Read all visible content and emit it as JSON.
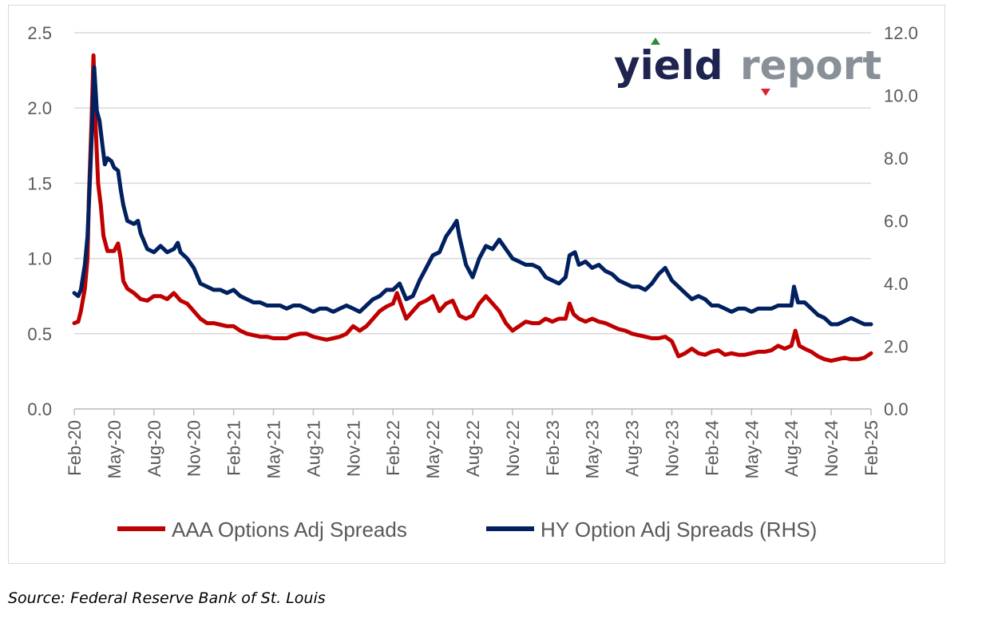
{
  "source": "Source: Federal Reserve Bank of St. Louis",
  "logo": {
    "part1": "yield",
    "part2": "report",
    "dark_color": "#1e2350",
    "grey_color": "#8a9099",
    "up_color": "#2e8b3a",
    "down_color": "#e02030"
  },
  "chart_data": {
    "type": "line",
    "title": "",
    "x_ticks": [
      "Feb-20",
      "May-20",
      "Aug-20",
      "Nov-20",
      "Feb-21",
      "May-21",
      "Aug-21",
      "Nov-21",
      "Feb-22",
      "May-22",
      "Aug-22",
      "Nov-22",
      "Feb-23",
      "May-23",
      "Aug-23",
      "Nov-23",
      "Feb-24",
      "May-24",
      "Aug-24",
      "Nov-24",
      "Feb-25"
    ],
    "y_left": {
      "min": 0,
      "max": 2.5,
      "ticks": [
        "0.0",
        "0.5",
        "1.0",
        "1.5",
        "2.0",
        "2.5"
      ]
    },
    "y_right": {
      "min": 0,
      "max": 12,
      "ticks": [
        "0.0",
        "2.0",
        "4.0",
        "6.0",
        "8.0",
        "10.0",
        "12.0"
      ]
    },
    "grid": "horizontal",
    "legend_position": "bottom",
    "series": [
      {
        "name": "AAA Options Adj Spreads",
        "axis": "left",
        "color": "#c00000",
        "points": [
          [
            0,
            0.57
          ],
          [
            0.3,
            0.58
          ],
          [
            0.5,
            0.65
          ],
          [
            0.8,
            0.8
          ],
          [
            1.0,
            1.0
          ],
          [
            1.1,
            1.4
          ],
          [
            1.3,
            1.9
          ],
          [
            1.45,
            2.35
          ],
          [
            1.6,
            1.9
          ],
          [
            1.8,
            1.5
          ],
          [
            2.0,
            1.35
          ],
          [
            2.2,
            1.15
          ],
          [
            2.5,
            1.05
          ],
          [
            3.0,
            1.05
          ],
          [
            3.3,
            1.1
          ],
          [
            3.5,
            1.0
          ],
          [
            3.7,
            0.85
          ],
          [
            4.0,
            0.8
          ],
          [
            4.5,
            0.77
          ],
          [
            5.0,
            0.73
          ],
          [
            5.5,
            0.72
          ],
          [
            6.0,
            0.75
          ],
          [
            6.5,
            0.75
          ],
          [
            7.0,
            0.73
          ],
          [
            7.5,
            0.77
          ],
          [
            8.0,
            0.72
          ],
          [
            8.5,
            0.7
          ],
          [
            9.0,
            0.65
          ],
          [
            9.5,
            0.6
          ],
          [
            10.0,
            0.57
          ],
          [
            10.5,
            0.57
          ],
          [
            11.0,
            0.56
          ],
          [
            11.5,
            0.55
          ],
          [
            12.0,
            0.55
          ],
          [
            12.5,
            0.52
          ],
          [
            13.0,
            0.5
          ],
          [
            13.5,
            0.49
          ],
          [
            14.0,
            0.48
          ],
          [
            14.5,
            0.48
          ],
          [
            15.0,
            0.47
          ],
          [
            15.5,
            0.47
          ],
          [
            16.0,
            0.47
          ],
          [
            16.5,
            0.49
          ],
          [
            17.0,
            0.5
          ],
          [
            17.5,
            0.5
          ],
          [
            18.0,
            0.48
          ],
          [
            18.5,
            0.47
          ],
          [
            19.0,
            0.46
          ],
          [
            19.5,
            0.47
          ],
          [
            20.0,
            0.48
          ],
          [
            20.5,
            0.5
          ],
          [
            21.0,
            0.55
          ],
          [
            21.5,
            0.52
          ],
          [
            22.0,
            0.55
          ],
          [
            22.5,
            0.6
          ],
          [
            23.0,
            0.65
          ],
          [
            23.5,
            0.68
          ],
          [
            24.0,
            0.7
          ],
          [
            24.3,
            0.77
          ],
          [
            24.7,
            0.67
          ],
          [
            25.0,
            0.6
          ],
          [
            25.5,
            0.65
          ],
          [
            26.0,
            0.7
          ],
          [
            26.5,
            0.72
          ],
          [
            27.0,
            0.75
          ],
          [
            27.5,
            0.65
          ],
          [
            28.0,
            0.7
          ],
          [
            28.5,
            0.72
          ],
          [
            29.0,
            0.62
          ],
          [
            29.5,
            0.6
          ],
          [
            30.0,
            0.62
          ],
          [
            30.5,
            0.7
          ],
          [
            31.0,
            0.75
          ],
          [
            31.5,
            0.7
          ],
          [
            32.0,
            0.65
          ],
          [
            32.5,
            0.57
          ],
          [
            33.0,
            0.52
          ],
          [
            33.5,
            0.55
          ],
          [
            34.0,
            0.58
          ],
          [
            34.5,
            0.57
          ],
          [
            35.0,
            0.57
          ],
          [
            35.5,
            0.6
          ],
          [
            36.0,
            0.58
          ],
          [
            36.5,
            0.6
          ],
          [
            37.0,
            0.6
          ],
          [
            37.3,
            0.7
          ],
          [
            37.6,
            0.63
          ],
          [
            38.0,
            0.6
          ],
          [
            38.5,
            0.58
          ],
          [
            39.0,
            0.6
          ],
          [
            39.5,
            0.58
          ],
          [
            40.0,
            0.57
          ],
          [
            40.5,
            0.55
          ],
          [
            41.0,
            0.53
          ],
          [
            41.5,
            0.52
          ],
          [
            42.0,
            0.5
          ],
          [
            42.5,
            0.49
          ],
          [
            43.0,
            0.48
          ],
          [
            43.5,
            0.47
          ],
          [
            44.0,
            0.47
          ],
          [
            44.5,
            0.48
          ],
          [
            45.0,
            0.45
          ],
          [
            45.5,
            0.35
          ],
          [
            46.0,
            0.37
          ],
          [
            46.5,
            0.4
          ],
          [
            47.0,
            0.37
          ],
          [
            47.5,
            0.36
          ],
          [
            48.0,
            0.38
          ],
          [
            48.5,
            0.39
          ],
          [
            49.0,
            0.36
          ],
          [
            49.5,
            0.37
          ],
          [
            50.0,
            0.36
          ],
          [
            50.5,
            0.36
          ],
          [
            51.0,
            0.37
          ],
          [
            51.5,
            0.38
          ],
          [
            52.0,
            0.38
          ],
          [
            52.5,
            0.39
          ],
          [
            53.0,
            0.42
          ],
          [
            53.5,
            0.4
          ],
          [
            54.0,
            0.42
          ],
          [
            54.3,
            0.52
          ],
          [
            54.6,
            0.42
          ],
          [
            55.0,
            0.4
          ],
          [
            55.5,
            0.38
          ],
          [
            56.0,
            0.35
          ],
          [
            56.5,
            0.33
          ],
          [
            57.0,
            0.32
          ],
          [
            57.5,
            0.33
          ],
          [
            58.0,
            0.34
          ],
          [
            58.5,
            0.33
          ],
          [
            59.0,
            0.33
          ],
          [
            59.5,
            0.34
          ],
          [
            60.0,
            0.37
          ]
        ]
      },
      {
        "name": "HY Option Adj Spreads (RHS)",
        "axis": "right",
        "color": "#002060",
        "points": [
          [
            0,
            3.7
          ],
          [
            0.3,
            3.6
          ],
          [
            0.5,
            3.8
          ],
          [
            0.8,
            4.6
          ],
          [
            1.0,
            5.5
          ],
          [
            1.1,
            6.5
          ],
          [
            1.3,
            8.5
          ],
          [
            1.5,
            10.9
          ],
          [
            1.7,
            9.5
          ],
          [
            1.9,
            9.2
          ],
          [
            2.1,
            8.5
          ],
          [
            2.3,
            7.8
          ],
          [
            2.5,
            8.0
          ],
          [
            2.8,
            7.9
          ],
          [
            3.0,
            7.7
          ],
          [
            3.3,
            7.6
          ],
          [
            3.5,
            7.0
          ],
          [
            3.7,
            6.5
          ],
          [
            4.0,
            6.0
          ],
          [
            4.5,
            5.9
          ],
          [
            4.8,
            6.0
          ],
          [
            5.0,
            5.6
          ],
          [
            5.5,
            5.1
          ],
          [
            6.0,
            5.0
          ],
          [
            6.5,
            5.2
          ],
          [
            7.0,
            5.0
          ],
          [
            7.5,
            5.1
          ],
          [
            7.8,
            5.3
          ],
          [
            8.0,
            5.0
          ],
          [
            8.5,
            4.8
          ],
          [
            9.0,
            4.5
          ],
          [
            9.5,
            4.0
          ],
          [
            10.0,
            3.9
          ],
          [
            10.5,
            3.8
          ],
          [
            11.0,
            3.8
          ],
          [
            11.5,
            3.7
          ],
          [
            12.0,
            3.8
          ],
          [
            12.5,
            3.6
          ],
          [
            13.0,
            3.5
          ],
          [
            13.5,
            3.4
          ],
          [
            14.0,
            3.4
          ],
          [
            14.5,
            3.3
          ],
          [
            15.0,
            3.3
          ],
          [
            15.5,
            3.3
          ],
          [
            16.0,
            3.2
          ],
          [
            16.5,
            3.3
          ],
          [
            17.0,
            3.3
          ],
          [
            17.5,
            3.2
          ],
          [
            18.0,
            3.1
          ],
          [
            18.5,
            3.2
          ],
          [
            19.0,
            3.2
          ],
          [
            19.5,
            3.1
          ],
          [
            20.0,
            3.2
          ],
          [
            20.5,
            3.3
          ],
          [
            21.0,
            3.2
          ],
          [
            21.5,
            3.1
          ],
          [
            22.0,
            3.3
          ],
          [
            22.5,
            3.5
          ],
          [
            23.0,
            3.6
          ],
          [
            23.5,
            3.8
          ],
          [
            24.0,
            3.8
          ],
          [
            24.5,
            4.0
          ],
          [
            25.0,
            3.5
          ],
          [
            25.5,
            3.6
          ],
          [
            26.0,
            4.1
          ],
          [
            26.5,
            4.5
          ],
          [
            27.0,
            4.9
          ],
          [
            27.5,
            5.0
          ],
          [
            28.0,
            5.5
          ],
          [
            28.5,
            5.8
          ],
          [
            28.8,
            6.0
          ],
          [
            29.0,
            5.5
          ],
          [
            29.5,
            4.6
          ],
          [
            30.0,
            4.2
          ],
          [
            30.5,
            4.8
          ],
          [
            31.0,
            5.2
          ],
          [
            31.5,
            5.1
          ],
          [
            32.0,
            5.4
          ],
          [
            32.5,
            5.1
          ],
          [
            33.0,
            4.8
          ],
          [
            33.5,
            4.7
          ],
          [
            34.0,
            4.6
          ],
          [
            34.5,
            4.6
          ],
          [
            35.0,
            4.5
          ],
          [
            35.5,
            4.2
          ],
          [
            36.0,
            4.1
          ],
          [
            36.5,
            4.0
          ],
          [
            37.0,
            4.2
          ],
          [
            37.3,
            4.9
          ],
          [
            37.7,
            5.0
          ],
          [
            38.0,
            4.6
          ],
          [
            38.5,
            4.7
          ],
          [
            39.0,
            4.5
          ],
          [
            39.5,
            4.6
          ],
          [
            40.0,
            4.4
          ],
          [
            40.5,
            4.3
          ],
          [
            41.0,
            4.1
          ],
          [
            41.5,
            4.0
          ],
          [
            42.0,
            3.9
          ],
          [
            42.5,
            3.9
          ],
          [
            43.0,
            3.8
          ],
          [
            43.5,
            4.0
          ],
          [
            44.0,
            4.3
          ],
          [
            44.5,
            4.5
          ],
          [
            45.0,
            4.1
          ],
          [
            45.5,
            3.9
          ],
          [
            46.0,
            3.7
          ],
          [
            46.5,
            3.5
          ],
          [
            47.0,
            3.6
          ],
          [
            47.5,
            3.5
          ],
          [
            48.0,
            3.3
          ],
          [
            48.5,
            3.3
          ],
          [
            49.0,
            3.2
          ],
          [
            49.5,
            3.1
          ],
          [
            50.0,
            3.2
          ],
          [
            50.5,
            3.2
          ],
          [
            51.0,
            3.1
          ],
          [
            51.5,
            3.2
          ],
          [
            52.0,
            3.2
          ],
          [
            52.5,
            3.2
          ],
          [
            53.0,
            3.3
          ],
          [
            53.5,
            3.3
          ],
          [
            54.0,
            3.3
          ],
          [
            54.2,
            3.9
          ],
          [
            54.5,
            3.4
          ],
          [
            55.0,
            3.4
          ],
          [
            55.5,
            3.2
          ],
          [
            56.0,
            3.0
          ],
          [
            56.5,
            2.9
          ],
          [
            57.0,
            2.7
          ],
          [
            57.5,
            2.7
          ],
          [
            58.0,
            2.8
          ],
          [
            58.5,
            2.9
          ],
          [
            59.0,
            2.8
          ],
          [
            59.5,
            2.7
          ],
          [
            60.0,
            2.7
          ]
        ]
      }
    ]
  }
}
